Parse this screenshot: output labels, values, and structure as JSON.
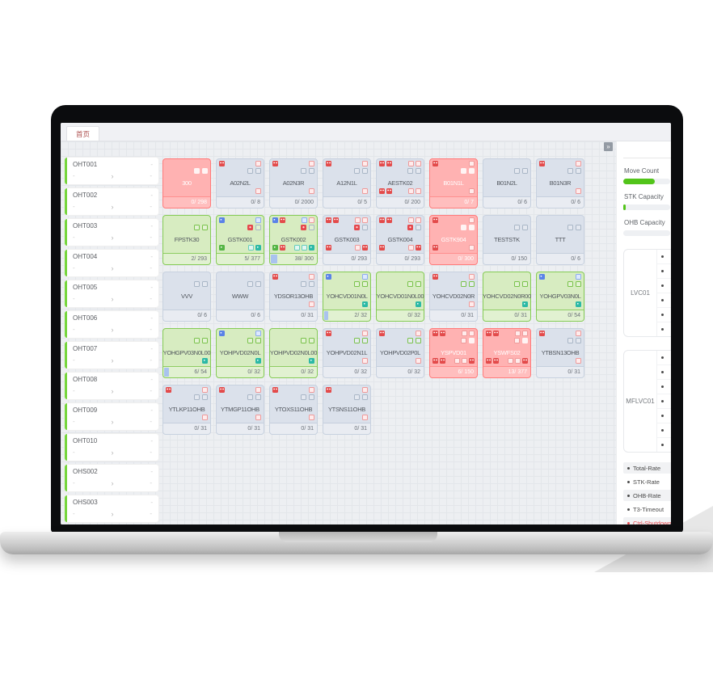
{
  "tab": {
    "label": "首页"
  },
  "sidebar": {
    "dash": "-",
    "chevron": "›",
    "items": [
      {
        "label": "OHT001"
      },
      {
        "label": "OHT002"
      },
      {
        "label": "OHT003"
      },
      {
        "label": "OHT004"
      },
      {
        "label": "OHT005"
      },
      {
        "label": "OHT006"
      },
      {
        "label": "OHT007"
      },
      {
        "label": "OHT008"
      },
      {
        "label": "OHT009"
      },
      {
        "label": "OHT010"
      },
      {
        "label": "OHS002"
      },
      {
        "label": "OHS003"
      }
    ]
  },
  "grid": {
    "collapse_icon": "»",
    "cards": [
      {
        "name": "300",
        "state": "red",
        "count": "0/ 298",
        "r1l": [],
        "r1r": [],
        "r2r": [
          "wf",
          "wf"
        ],
        "r3l": [],
        "r3r": []
      },
      {
        "name": "A02N2L",
        "state": "gray",
        "count": "0/ 8",
        "r1l": [
          "rf"
        ],
        "r1r": [
          "ro"
        ],
        "r2r": [
          "go",
          "go"
        ],
        "r3l": [],
        "r3r": [
          "ro"
        ]
      },
      {
        "name": "A02N3R",
        "state": "gray",
        "count": "0/ 2000",
        "r1l": [
          "rf"
        ],
        "r1r": [
          "ro"
        ],
        "r2r": [
          "go",
          "go"
        ],
        "r3l": [],
        "r3r": [
          "ro"
        ]
      },
      {
        "name": "A12N1L",
        "state": "gray",
        "count": "0/ 5",
        "r1l": [
          "rf"
        ],
        "r1r": [
          "ro"
        ],
        "r2r": [
          "go",
          "go"
        ],
        "r3l": [],
        "r3r": [
          "ro"
        ]
      },
      {
        "name": "AESTK02",
        "state": "gray",
        "count": "0/ 200",
        "r1l": [
          "rf",
          "rf"
        ],
        "r1r": [
          "ro",
          "ro"
        ],
        "r2r": [
          "go",
          "go"
        ],
        "r3l": [
          "rf",
          "rf"
        ],
        "r3r": [
          "ro",
          "ro"
        ]
      },
      {
        "name": "B01N1L",
        "state": "red",
        "count": "0/ 7",
        "r1l": [
          "rf"
        ],
        "r1r": [
          "ro"
        ],
        "r2r": [
          "wf",
          "wf"
        ],
        "r3l": [],
        "r3r": [
          "ro"
        ]
      },
      {
        "name": "B01N2L",
        "state": "gray",
        "count": "0/ 6",
        "r1l": [],
        "r1r": [],
        "r2r": [
          "go",
          "go"
        ],
        "r3l": [],
        "r3r": []
      },
      {
        "name": "B01N3R",
        "state": "gray",
        "count": "0/ 6",
        "r1l": [
          "rf"
        ],
        "r1r": [
          "ro"
        ],
        "r2r": [
          "go",
          "go"
        ],
        "r3l": [],
        "r3r": [
          "ro"
        ]
      },
      {
        "name": "FPSTK30",
        "state": "green",
        "count": "2/ 293",
        "r1l": [],
        "r1r": [],
        "r2r": [
          "gn",
          "gn"
        ],
        "r3l": [],
        "r3r": []
      },
      {
        "name": "GSTK001",
        "state": "green",
        "count": "5/ 377",
        "r1l": [
          "bf"
        ],
        "r1r": [
          "bo"
        ],
        "r2r": [
          "rb",
          "go"
        ],
        "r3l": [
          "gf"
        ],
        "r3r": [
          "to",
          "tf"
        ]
      },
      {
        "name": "GSTK002",
        "state": "green",
        "count": "38/ 300",
        "bar": 8,
        "r1l": [
          "bf",
          "rf"
        ],
        "r1r": [
          "bo",
          "ro"
        ],
        "r2r": [
          "rb",
          "go"
        ],
        "r3l": [
          "gf",
          "rf"
        ],
        "r3r": [
          "to",
          "to",
          "tf"
        ]
      },
      {
        "name": "GSTK003",
        "state": "gray",
        "count": "0/ 293",
        "r1l": [
          "rf",
          "rf"
        ],
        "r1r": [
          "ro",
          "ro"
        ],
        "r2r": [
          "rb",
          "go"
        ],
        "r3l": [
          "rf"
        ],
        "r3r": [
          "ro",
          "rf"
        ]
      },
      {
        "name": "GSTK004",
        "state": "gray",
        "count": "0/ 293",
        "r1l": [
          "rf",
          "rf"
        ],
        "r1r": [
          "ro",
          "ro"
        ],
        "r2r": [
          "rb",
          "go"
        ],
        "r3l": [
          "rf"
        ],
        "r3r": [
          "ro",
          "rf"
        ]
      },
      {
        "name": "GSTK904",
        "state": "red",
        "count": "0/ 300",
        "r1l": [
          "rf"
        ],
        "r1r": [
          "ro"
        ],
        "r2r": [
          "wf",
          "wf"
        ],
        "r3l": [
          "rf"
        ],
        "r3r": [
          "ro"
        ]
      },
      {
        "name": "TESTSTK",
        "state": "gray",
        "count": "0/ 150",
        "r1l": [],
        "r1r": [],
        "r2r": [
          "go",
          "go"
        ],
        "r3l": [],
        "r3r": []
      },
      {
        "name": "TTT",
        "state": "gray",
        "count": "0/ 6",
        "r1l": [],
        "r1r": [],
        "r2r": [
          "go",
          "go"
        ],
        "r3l": [],
        "r3r": []
      },
      {
        "name": "VVV",
        "state": "gray",
        "count": "0/ 6",
        "r1l": [],
        "r1r": [],
        "r2r": [
          "go",
          "go"
        ],
        "r3l": [],
        "r3r": []
      },
      {
        "name": "WWW",
        "state": "gray",
        "count": "0/ 6",
        "r1l": [],
        "r1r": [],
        "r2r": [
          "go",
          "go"
        ],
        "r3l": [],
        "r3r": []
      },
      {
        "name": "YDSOR13OHB",
        "state": "gray",
        "count": "0/ 31",
        "r1l": [
          "rf"
        ],
        "r1r": [
          "ro"
        ],
        "r2r": [
          "go",
          "go"
        ],
        "r3l": [],
        "r3r": [
          "ro"
        ]
      },
      {
        "name": "YOHCVD01N0L",
        "state": "green",
        "count": "2/ 32",
        "bar": 5,
        "r1l": [
          "bf"
        ],
        "r1r": [
          "bo"
        ],
        "r2r": [
          "gn",
          "gn"
        ],
        "r3l": [],
        "r3r": [
          "tf"
        ]
      },
      {
        "name": "YOHCVD01N0L00",
        "state": "green",
        "count": "0/ 32",
        "r1l": [],
        "r1r": [],
        "r2r": [
          "gn",
          "gn"
        ],
        "r3l": [],
        "r3r": [
          "tf"
        ]
      },
      {
        "name": "YOHCVD02N0R",
        "state": "gray",
        "count": "0/ 31",
        "r1l": [
          "rf"
        ],
        "r1r": [
          "ro"
        ],
        "r2r": [
          "gn",
          "gn"
        ],
        "r3l": [],
        "r3r": [
          "ro"
        ]
      },
      {
        "name": "YOHCVD02N0R00",
        "state": "green",
        "count": "0/ 31",
        "r1l": [],
        "r1r": [],
        "r2r": [
          "gn",
          "gn"
        ],
        "r3l": [],
        "r3r": [
          "tf"
        ]
      },
      {
        "name": "YOHGPV03N0L",
        "state": "green",
        "count": "0/ 54",
        "r1l": [
          "bf"
        ],
        "r1r": [
          "bo"
        ],
        "r2r": [
          "gn",
          "gn"
        ],
        "r3l": [],
        "r3r": [
          "tf"
        ]
      },
      {
        "name": "YOHGPV03N0L00",
        "state": "green",
        "count": "6/ 54",
        "bar": 6,
        "r1l": [],
        "r1r": [],
        "r2r": [
          "gn",
          "gn"
        ],
        "r3l": [],
        "r3r": [
          "tf"
        ]
      },
      {
        "name": "YOHPVD02N0L",
        "state": "green",
        "count": "0/ 32",
        "r1l": [
          "bf"
        ],
        "r1r": [
          "bo"
        ],
        "r2r": [
          "gn",
          "gn"
        ],
        "r3l": [],
        "r3r": [
          "tf"
        ]
      },
      {
        "name": "YOHPVD02N0L00",
        "state": "green",
        "count": "0/ 32",
        "r1l": [],
        "r1r": [],
        "r2r": [
          "gn",
          "gn"
        ],
        "r3l": [],
        "r3r": [
          "tf"
        ]
      },
      {
        "name": "YOHPVD02N1L",
        "state": "gray",
        "count": "0/ 32",
        "r1l": [
          "rf"
        ],
        "r1r": [
          "ro"
        ],
        "r2r": [
          "gn",
          "gn"
        ],
        "r3l": [],
        "r3r": [
          "ro"
        ]
      },
      {
        "name": "YOHPVD02P0L",
        "state": "gray",
        "count": "0/ 32",
        "r1l": [
          "rf"
        ],
        "r1r": [
          "ro"
        ],
        "r2r": [
          "gn",
          "gn"
        ],
        "r3l": [],
        "r3r": [
          "ro"
        ]
      },
      {
        "name": "YSPVD01",
        "state": "red",
        "count": "6/ 150",
        "r1l": [
          "rf",
          "rf"
        ],
        "r1r": [
          "ro",
          "ro"
        ],
        "r2r": [
          "ro",
          "wf"
        ],
        "r3l": [
          "rf",
          "rf"
        ],
        "r3r": [
          "ro",
          "ro",
          "rf"
        ]
      },
      {
        "name": "YSWFS02",
        "state": "red",
        "count": "13/ 377",
        "r1l": [
          "rf",
          "rf"
        ],
        "r1r": [
          "ro",
          "ro"
        ],
        "r2r": [
          "ro",
          "wf"
        ],
        "r3l": [
          "rf",
          "rf"
        ],
        "r3r": [
          "ro",
          "ro",
          "rf"
        ]
      },
      {
        "name": "YTBSN13OHB",
        "state": "gray",
        "count": "0/ 31",
        "r1l": [
          "rf"
        ],
        "r1r": [
          "ro"
        ],
        "r2r": [
          "go",
          "go"
        ],
        "r3l": [],
        "r3r": [
          "ro"
        ]
      },
      {
        "name": "YTLKP11OHB",
        "state": "gray",
        "count": "0/ 31",
        "r1l": [
          "rf"
        ],
        "r1r": [
          "ro"
        ],
        "r2r": [
          "go",
          "go"
        ],
        "r3l": [],
        "r3r": [
          "ro"
        ]
      },
      {
        "name": "YTMGP11OHB",
        "state": "gray",
        "count": "0/ 31",
        "r1l": [
          "rf"
        ],
        "r1r": [
          "ro"
        ],
        "r2r": [
          "go",
          "go"
        ],
        "r3l": [],
        "r3r": [
          "ro"
        ]
      },
      {
        "name": "YTOXS11OHB",
        "state": "gray",
        "count": "0/ 31",
        "r1l": [
          "rf"
        ],
        "r1r": [
          "ro"
        ],
        "r2r": [
          "go",
          "go"
        ],
        "r3l": [],
        "r3r": [
          "ro"
        ]
      },
      {
        "name": "YTSNS11OHB",
        "state": "gray",
        "count": "0/ 31",
        "r1l": [
          "rf"
        ],
        "r1r": [
          "ro"
        ],
        "r2r": [
          "go",
          "go"
        ],
        "r3l": [],
        "r3r": [
          "ro"
        ]
      }
    ]
  },
  "panel": {
    "move_count": {
      "label": "Move Count",
      "fill_pct": 68,
      "color": "#52c41a"
    },
    "stk_capacity": {
      "label": "STK Capacity",
      "fill_pct": 5,
      "color": "#52c41a"
    },
    "ohb_capacity": {
      "label": "OHB Capacity",
      "fill_pct": 0,
      "color": "#52c41a"
    },
    "lvc_cards": [
      {
        "label": "LVC01",
        "bullet_rows": 6
      },
      {
        "label": "MFLVC01",
        "bullet_rows": 7
      }
    ],
    "legend": [
      {
        "label": "Total-Rate",
        "color": "#4a4a4a",
        "bg": true
      },
      {
        "label": "STK-Rate",
        "color": "#4a4a4a",
        "bg": false
      },
      {
        "label": "OHB-Rate",
        "color": "#4a4a4a",
        "bg": true
      },
      {
        "label": "T3-Timeout",
        "color": "#4a4a4a",
        "bg": false
      },
      {
        "label": "Ctrl-Shutdown",
        "color": "#e5484d",
        "bg": true
      }
    ]
  }
}
